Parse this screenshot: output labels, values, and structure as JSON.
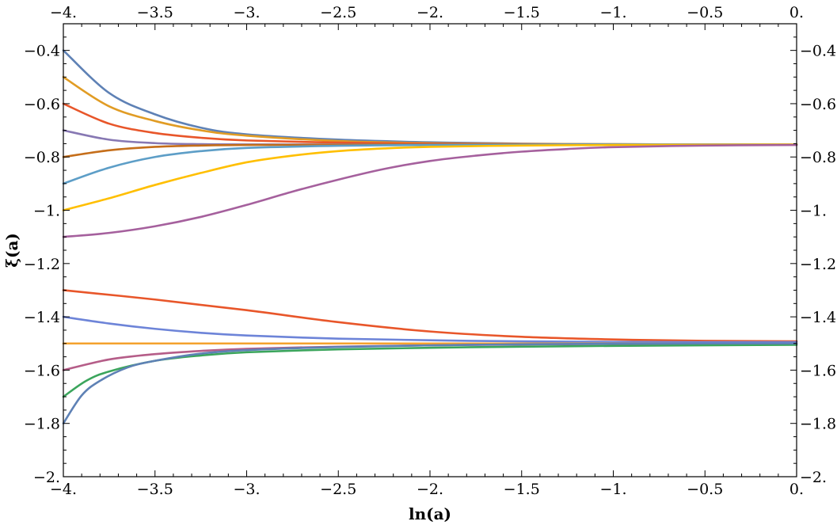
{
  "chart_data": {
    "type": "line",
    "xlabel": "ln(a)",
    "ylabel": "ξ(a)",
    "xlim": [
      -4,
      0
    ],
    "ylim": [
      -2,
      -0.3
    ],
    "grid": false,
    "x_ticks": [
      {
        "value": -4,
        "label": "−4."
      },
      {
        "value": -3.5,
        "label": "−3.5"
      },
      {
        "value": -3,
        "label": "−3."
      },
      {
        "value": -2.5,
        "label": "−2.5"
      },
      {
        "value": -2,
        "label": "−2."
      },
      {
        "value": -1.5,
        "label": "−1.5"
      },
      {
        "value": -1,
        "label": "−1."
      },
      {
        "value": -0.5,
        "label": "−0.5"
      },
      {
        "value": 0,
        "label": "0."
      }
    ],
    "y_ticks": [
      {
        "value": -0.4,
        "label": "−0.4"
      },
      {
        "value": -0.6,
        "label": "−0.6"
      },
      {
        "value": -0.8,
        "label": "−0.8"
      },
      {
        "value": -1.0,
        "label": "−1."
      },
      {
        "value": -1.2,
        "label": "−1.2"
      },
      {
        "value": -1.4,
        "label": "−1.4"
      },
      {
        "value": -1.6,
        "label": "−1.6"
      },
      {
        "value": -1.8,
        "label": "−1.8"
      },
      {
        "value": -2.0,
        "label": "−2."
      }
    ],
    "series": [
      {
        "color": "#5e81b5",
        "x": [
          -4,
          -3.75,
          -3.5,
          -3.25,
          -3,
          -2.5,
          -2,
          -1.5,
          -1,
          -0.5,
          0
        ],
        "y": [
          -0.4,
          -0.56,
          -0.64,
          -0.69,
          -0.715,
          -0.735,
          -0.745,
          -0.75,
          -0.752,
          -0.753,
          -0.753
        ]
      },
      {
        "color": "#e19c24",
        "x": [
          -4,
          -3.75,
          -3.5,
          -3.25,
          -3,
          -2.5,
          -2,
          -1.5,
          -1,
          -0.5,
          0
        ],
        "y": [
          -0.5,
          -0.61,
          -0.665,
          -0.7,
          -0.72,
          -0.74,
          -0.748,
          -0.751,
          -0.752,
          -0.753,
          -0.753
        ]
      },
      {
        "color": "#e8562a",
        "x": [
          -4,
          -3.75,
          -3.5,
          -3.25,
          -3,
          -2.5,
          -2,
          -1.5,
          -1,
          -0.5,
          0
        ],
        "y": [
          -0.6,
          -0.675,
          -0.71,
          -0.728,
          -0.738,
          -0.746,
          -0.75,
          -0.752,
          -0.753,
          -0.753,
          -0.753
        ]
      },
      {
        "color": "#8778b3",
        "x": [
          -4,
          -3.75,
          -3.5,
          -3.25,
          -3,
          -2.5,
          -2,
          -1.5,
          -1,
          -0.5,
          0
        ],
        "y": [
          -0.7,
          -0.735,
          -0.748,
          -0.752,
          -0.753,
          -0.753,
          -0.753,
          -0.753,
          -0.753,
          -0.753,
          -0.753
        ]
      },
      {
        "color": "#c56e1a",
        "x": [
          -4,
          -3.75,
          -3.5,
          -3.25,
          -3,
          -2.5,
          -2,
          -1.5,
          -1,
          -0.5,
          0
        ],
        "y": [
          -0.8,
          -0.775,
          -0.762,
          -0.757,
          -0.755,
          -0.754,
          -0.753,
          -0.753,
          -0.753,
          -0.753,
          -0.753
        ]
      },
      {
        "color": "#5d9ec7",
        "x": [
          -4,
          -3.75,
          -3.5,
          -3.25,
          -3,
          -2.5,
          -2,
          -1.5,
          -1,
          -0.5,
          0
        ],
        "y": [
          -0.9,
          -0.84,
          -0.8,
          -0.778,
          -0.766,
          -0.758,
          -0.755,
          -0.754,
          -0.753,
          -0.753,
          -0.753
        ]
      },
      {
        "color": "#ffbf00",
        "x": [
          -4,
          -3.75,
          -3.5,
          -3.25,
          -3,
          -2.75,
          -2.5,
          -2.25,
          -2,
          -1.5,
          -1,
          -0.5,
          0
        ],
        "y": [
          -1.0,
          -0.955,
          -0.905,
          -0.86,
          -0.82,
          -0.795,
          -0.778,
          -0.768,
          -0.762,
          -0.757,
          -0.755,
          -0.754,
          -0.753
        ]
      },
      {
        "color": "#a5609d",
        "x": [
          -4,
          -3.75,
          -3.5,
          -3.25,
          -3,
          -2.75,
          -2.5,
          -2.25,
          -2,
          -1.75,
          -1.5,
          -1.25,
          -1,
          -0.5,
          0
        ],
        "y": [
          -1.1,
          -1.085,
          -1.06,
          -1.025,
          -0.98,
          -0.93,
          -0.885,
          -0.845,
          -0.815,
          -0.795,
          -0.78,
          -0.77,
          -0.763,
          -0.757,
          -0.755
        ]
      },
      {
        "color": "#e8562a",
        "x": [
          -4,
          -3.5,
          -3,
          -2.5,
          -2,
          -1.5,
          -1,
          -0.5,
          0
        ],
        "y": [
          -1.3,
          -1.335,
          -1.375,
          -1.42,
          -1.455,
          -1.475,
          -1.485,
          -1.49,
          -1.492
        ]
      },
      {
        "color": "#6d84d8",
        "x": [
          -4,
          -3.75,
          -3.5,
          -3.25,
          -3,
          -2.5,
          -2,
          -1.5,
          -1,
          -0.5,
          0
        ],
        "y": [
          -1.4,
          -1.425,
          -1.445,
          -1.46,
          -1.47,
          -1.482,
          -1.488,
          -1.492,
          -1.494,
          -1.495,
          -1.495
        ]
      },
      {
        "color": "#f4a22d",
        "x": [
          -4,
          -3,
          -2,
          -1,
          0
        ],
        "y": [
          -1.5,
          -1.5,
          -1.5,
          -1.5,
          -1.5
        ]
      },
      {
        "color": "#b55d88",
        "x": [
          -4,
          -3.75,
          -3.5,
          -3.25,
          -3,
          -2.5,
          -2,
          -1.5,
          -1,
          -0.5,
          0
        ],
        "y": [
          -1.6,
          -1.56,
          -1.54,
          -1.528,
          -1.52,
          -1.512,
          -1.507,
          -1.504,
          -1.502,
          -1.501,
          -1.5
        ]
      },
      {
        "color": "#3ba55c",
        "x": [
          -4,
          -3.875,
          -3.75,
          -3.5,
          -3.25,
          -3,
          -2.5,
          -2,
          -1.5,
          -1,
          -0.5,
          0
        ],
        "y": [
          -1.7,
          -1.64,
          -1.605,
          -1.565,
          -1.545,
          -1.533,
          -1.522,
          -1.516,
          -1.512,
          -1.509,
          -1.507,
          -1.505
        ]
      },
      {
        "color": "#5e81b5",
        "x": [
          -4,
          -3.9,
          -3.8,
          -3.65,
          -3.5,
          -3.25,
          -3,
          -2.5,
          -2,
          -1.5,
          -1,
          -0.5,
          0
        ],
        "y": [
          -1.8,
          -1.695,
          -1.64,
          -1.59,
          -1.565,
          -1.538,
          -1.525,
          -1.513,
          -1.507,
          -1.503,
          -1.501,
          -1.5,
          -1.5
        ]
      }
    ]
  }
}
